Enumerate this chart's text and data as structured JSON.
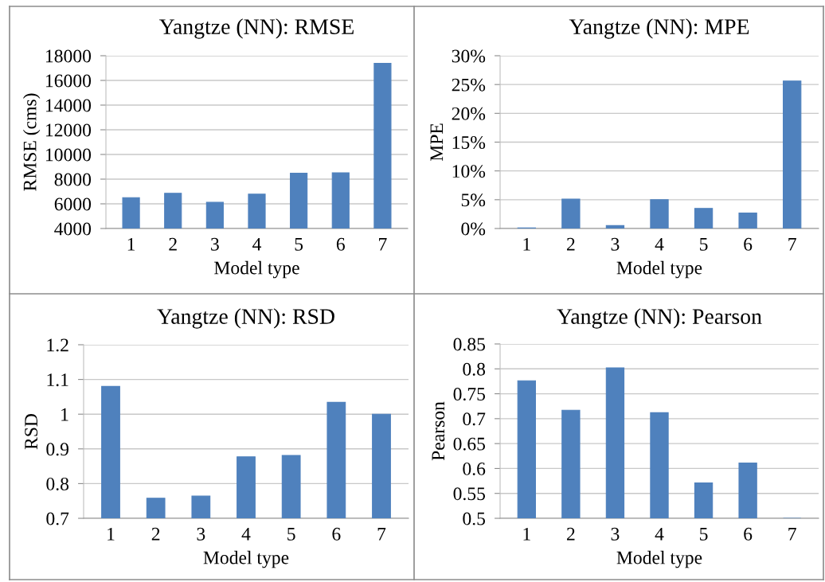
{
  "chart_data": [
    {
      "type": "bar",
      "title": "Yangtze (NN): RMSE",
      "xlabel": "Model type",
      "ylabel": "RMSE (cms)",
      "categories": [
        "1",
        "2",
        "3",
        "4",
        "5",
        "6",
        "7"
      ],
      "values": [
        6500,
        6850,
        6120,
        6780,
        8480,
        8520,
        17380
      ],
      "color": "#4f81bd",
      "ylim": [
        4000,
        18000
      ],
      "yticks": [
        4000,
        6000,
        8000,
        10000,
        12000,
        14000,
        16000,
        18000
      ],
      "grid": "y"
    },
    {
      "type": "bar",
      "title": "Yangtze (NN): MPE",
      "xlabel": "Model type",
      "ylabel": "MPE",
      "categories": [
        "1",
        "2",
        "3",
        "4",
        "5",
        "6",
        "7"
      ],
      "values": [
        0.1,
        5.1,
        0.5,
        5.0,
        3.5,
        2.7,
        25.6
      ],
      "color": "#4f81bd",
      "ylim": [
        0,
        30
      ],
      "yticks": [
        {
          "value": 0,
          "label": "0%"
        },
        {
          "value": 5,
          "label": "5%"
        },
        {
          "value": 10,
          "label": "10%"
        },
        {
          "value": 15,
          "label": "15%"
        },
        {
          "value": 20,
          "label": "20%"
        },
        {
          "value": 25,
          "label": "25%"
        },
        {
          "value": 30,
          "label": "30%"
        }
      ],
      "grid": "y"
    },
    {
      "type": "bar",
      "title": "Yangtze (NN): RSD",
      "xlabel": "Model type",
      "ylabel": "RSD",
      "categories": [
        "1",
        "2",
        "3",
        "4",
        "5",
        "6",
        "7"
      ],
      "values": [
        1.08,
        0.758,
        0.764,
        0.877,
        0.881,
        1.034,
        1.0
      ],
      "color": "#4f81bd",
      "ylim": [
        0.7,
        1.2
      ],
      "yticks": [
        0.7,
        0.8,
        0.9,
        1,
        1.1,
        1.2
      ],
      "grid": "y"
    },
    {
      "type": "bar",
      "title": "Yangtze (NN): Pearson",
      "xlabel": "Model type",
      "ylabel": "Pearson",
      "categories": [
        "1",
        "2",
        "3",
        "4",
        "5",
        "6",
        "7"
      ],
      "values": [
        0.776,
        0.717,
        0.802,
        0.712,
        0.571,
        0.611,
        0.5
      ],
      "color": "#4f81bd",
      "ylim": [
        0.5,
        0.85
      ],
      "yticks": [
        0.5,
        0.55,
        0.6,
        0.65,
        0.7,
        0.75,
        0.8,
        0.85
      ],
      "grid": "y"
    }
  ]
}
